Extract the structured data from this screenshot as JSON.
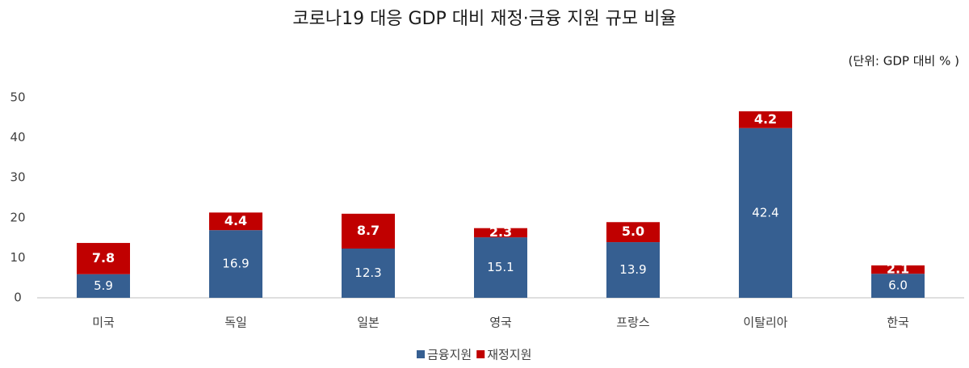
{
  "chart_data": {
    "type": "stacked-bar",
    "title": "코로나19 대응 GDP 대비 재정·금융 지원 규모 비율",
    "subtitle": "(단위: GDP 대비 % )",
    "categories": [
      "미국",
      "독일",
      "일본",
      "영국",
      "프랑스",
      "이탈리아",
      "한국"
    ],
    "series": [
      {
        "name": "금융지원",
        "color": "#365f91",
        "values": [
          5.9,
          16.9,
          12.3,
          15.1,
          13.9,
          42.4,
          6.0
        ],
        "value_labels": [
          "5.9",
          "16.9",
          "12.3",
          "15.1",
          "13.9",
          "42.4",
          "6.0"
        ]
      },
      {
        "name": "재정지원",
        "color": "#c00000",
        "values": [
          7.8,
          4.4,
          8.7,
          2.3,
          5.0,
          4.2,
          2.1
        ],
        "value_labels": [
          "7.8",
          "4.4",
          "8.7",
          "2.3",
          "5.0",
          "4.2",
          "2.1"
        ]
      }
    ],
    "ylim": [
      0,
      50
    ],
    "yticks": [
      0,
      10,
      20,
      30,
      40,
      50
    ],
    "grid": false,
    "legend": "bottom"
  }
}
